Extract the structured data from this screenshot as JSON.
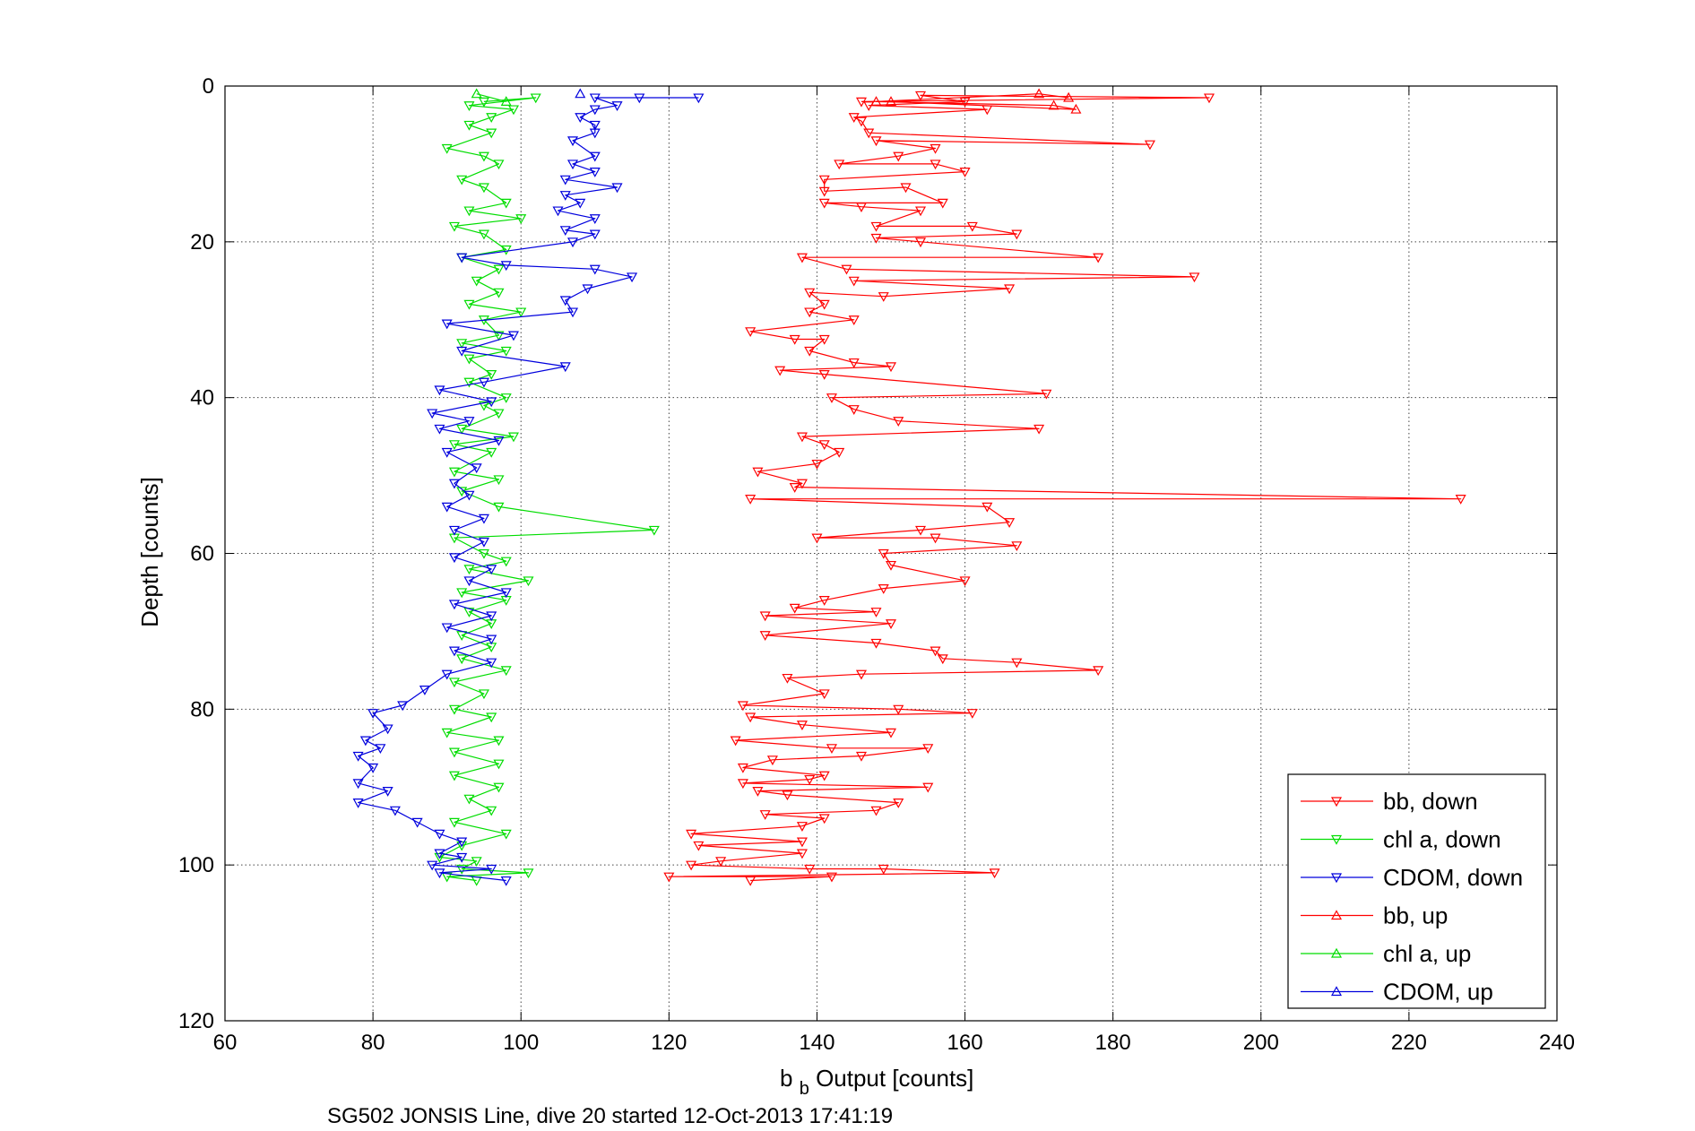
{
  "chart_data": {
    "type": "line",
    "title": "",
    "xlabel": {
      "main": "b",
      "sub": "b",
      "rest": " Output [counts]"
    },
    "ylabel": "Depth [counts]",
    "caption": "SG502 JONSIS Line, dive 20 started 12-Oct-2013 17:41:19",
    "xlim": [
      60,
      240
    ],
    "ylim": [
      0,
      120
    ],
    "y_reversed": true,
    "grid": true,
    "legend_position": "bottom-right",
    "xticks": [
      60,
      80,
      100,
      120,
      140,
      160,
      180,
      200,
      220,
      240
    ],
    "xtick_labels": [
      "60",
      "80",
      "100",
      "120",
      "140",
      "160",
      "180",
      "200",
      "220",
      "240"
    ],
    "yticks": [
      0,
      20,
      40,
      60,
      80,
      100,
      120
    ],
    "ytick_labels": [
      "0",
      "20",
      "40",
      "60",
      "80",
      "100",
      "120"
    ],
    "series": [
      {
        "name": "bb, down",
        "color": "#ff0000",
        "marker": "triangle-down",
        "points": [
          [
            146,
            2
          ],
          [
            193,
            1.5
          ],
          [
            154,
            1.2
          ],
          [
            160,
            2
          ],
          [
            147,
            2.5
          ],
          [
            163,
            3
          ],
          [
            145,
            4
          ],
          [
            146,
            4.5
          ],
          [
            147,
            6
          ],
          [
            185,
            7.5
          ],
          [
            148,
            7
          ],
          [
            156,
            8
          ],
          [
            151,
            9
          ],
          [
            143,
            10
          ],
          [
            156,
            10
          ],
          [
            160,
            11
          ],
          [
            141,
            12
          ],
          [
            141,
            13.5
          ],
          [
            152,
            13
          ],
          [
            157,
            15
          ],
          [
            141,
            15
          ],
          [
            146,
            15.5
          ],
          [
            154,
            16
          ],
          [
            148,
            18
          ],
          [
            161,
            18
          ],
          [
            167,
            19
          ],
          [
            148,
            19.5
          ],
          [
            154,
            20
          ],
          [
            178,
            22
          ],
          [
            138,
            22
          ],
          [
            144,
            23.5
          ],
          [
            191,
            24.5
          ],
          [
            145,
            25
          ],
          [
            166,
            26
          ],
          [
            149,
            27
          ],
          [
            139,
            26.5
          ],
          [
            141,
            28
          ],
          [
            139,
            29
          ],
          [
            145,
            30
          ],
          [
            131,
            31.5
          ],
          [
            137,
            32.5
          ],
          [
            141,
            32.5
          ],
          [
            139,
            34
          ],
          [
            145,
            35.5
          ],
          [
            150,
            36
          ],
          [
            135,
            36.5
          ],
          [
            141,
            37
          ],
          [
            171,
            39.5
          ],
          [
            142,
            40
          ],
          [
            145,
            41.5
          ],
          [
            151,
            43
          ],
          [
            170,
            44
          ],
          [
            138,
            45
          ],
          [
            141,
            46
          ],
          [
            143,
            47
          ],
          [
            140,
            48.5
          ],
          [
            132,
            49.5
          ],
          [
            138,
            51
          ],
          [
            137,
            51.5
          ],
          [
            227,
            53
          ],
          [
            131,
            53
          ],
          [
            163,
            54
          ],
          [
            166,
            56
          ],
          [
            154,
            57
          ],
          [
            140,
            58
          ],
          [
            156,
            58
          ],
          [
            167,
            59
          ],
          [
            149,
            60
          ],
          [
            150,
            61.5
          ],
          [
            160,
            63.5
          ],
          [
            149,
            64.5
          ],
          [
            141,
            66
          ],
          [
            137,
            67
          ],
          [
            148,
            67.5
          ],
          [
            133,
            68
          ],
          [
            150,
            69
          ],
          [
            133,
            70.5
          ],
          [
            148,
            71.5
          ],
          [
            156,
            72.5
          ],
          [
            157,
            73.5
          ],
          [
            167,
            74
          ],
          [
            178,
            75
          ],
          [
            146,
            75.5
          ],
          [
            136,
            76
          ],
          [
            141,
            78
          ],
          [
            130,
            79.5
          ],
          [
            151,
            80
          ],
          [
            161,
            80.5
          ],
          [
            131,
            81
          ],
          [
            138,
            82
          ],
          [
            150,
            83
          ],
          [
            129,
            84
          ],
          [
            142,
            85
          ],
          [
            155,
            85
          ],
          [
            146,
            86
          ],
          [
            134,
            86.5
          ],
          [
            130,
            87.5
          ],
          [
            141,
            88.5
          ],
          [
            139,
            89
          ],
          [
            130,
            89.5
          ],
          [
            155,
            90
          ],
          [
            132,
            90.5
          ],
          [
            136,
            91
          ],
          [
            151,
            92
          ],
          [
            148,
            93
          ],
          [
            133,
            93.5
          ],
          [
            141,
            94
          ],
          [
            138,
            95
          ],
          [
            123,
            96
          ],
          [
            138,
            97
          ],
          [
            124,
            97.5
          ],
          [
            138,
            98.5
          ],
          [
            127,
            99.5
          ],
          [
            123,
            100
          ],
          [
            139,
            100.5
          ],
          [
            149,
            100.5
          ],
          [
            164,
            101
          ],
          [
            120,
            101.5
          ],
          [
            142,
            101.5
          ],
          [
            131,
            102
          ]
        ]
      },
      {
        "name": "chl a, down",
        "color": "#00dd00",
        "marker": "triangle-down",
        "points": [
          [
            95,
            2
          ],
          [
            102,
            1.5
          ],
          [
            93,
            2.5
          ],
          [
            99,
            3
          ],
          [
            96,
            4
          ],
          [
            93,
            5
          ],
          [
            96,
            6
          ],
          [
            90,
            8
          ],
          [
            95,
            9
          ],
          [
            97,
            10
          ],
          [
            92,
            12
          ],
          [
            95,
            13
          ],
          [
            98,
            15
          ],
          [
            93,
            16
          ],
          [
            100,
            17
          ],
          [
            91,
            18
          ],
          [
            95,
            19
          ],
          [
            98,
            21
          ],
          [
            92,
            22
          ],
          [
            97,
            23.5
          ],
          [
            94,
            25
          ],
          [
            97,
            26.5
          ],
          [
            93,
            28
          ],
          [
            100,
            29
          ],
          [
            95,
            30
          ],
          [
            97,
            32
          ],
          [
            92,
            33
          ],
          [
            98,
            34
          ],
          [
            93,
            35
          ],
          [
            96,
            37
          ],
          [
            93,
            38
          ],
          [
            98,
            40
          ],
          [
            95,
            41
          ],
          [
            97,
            42
          ],
          [
            92,
            44
          ],
          [
            99,
            45
          ],
          [
            91,
            46
          ],
          [
            96,
            47
          ],
          [
            91,
            49.5
          ],
          [
            97,
            50.5
          ],
          [
            92,
            52
          ],
          [
            97,
            54
          ],
          [
            118,
            57
          ],
          [
            91,
            58
          ],
          [
            95,
            60
          ],
          [
            98,
            61
          ],
          [
            93,
            62
          ],
          [
            101,
            63.5
          ],
          [
            92,
            65
          ],
          [
            98,
            66
          ],
          [
            93,
            67.5
          ],
          [
            96,
            69
          ],
          [
            92,
            70.5
          ],
          [
            96,
            72
          ],
          [
            92,
            73.5
          ],
          [
            98,
            75
          ],
          [
            91,
            76.5
          ],
          [
            95,
            78
          ],
          [
            91,
            80
          ],
          [
            96,
            81
          ],
          [
            90,
            83
          ],
          [
            97,
            84
          ],
          [
            91,
            85.5
          ],
          [
            97,
            87
          ],
          [
            91,
            88.5
          ],
          [
            97,
            90
          ],
          [
            93,
            91.5
          ],
          [
            96,
            93
          ],
          [
            91,
            94.5
          ],
          [
            98,
            96
          ],
          [
            92,
            97.5
          ],
          [
            89,
            99
          ],
          [
            94,
            99.5
          ],
          [
            92,
            100.5
          ],
          [
            101,
            101
          ],
          [
            90,
            101.5
          ],
          [
            94,
            102
          ]
        ]
      },
      {
        "name": "CDOM, down",
        "color": "#0000dd",
        "marker": "triangle-down",
        "points": [
          [
            124,
            1.5
          ],
          [
            116,
            1.5
          ],
          [
            110,
            1.5
          ],
          [
            113,
            2.5
          ],
          [
            110,
            3
          ],
          [
            108,
            4
          ],
          [
            110,
            5
          ],
          [
            110,
            6
          ],
          [
            107,
            7
          ],
          [
            110,
            9
          ],
          [
            107,
            10
          ],
          [
            110,
            11
          ],
          [
            106,
            12
          ],
          [
            113,
            13
          ],
          [
            106,
            14
          ],
          [
            108,
            15
          ],
          [
            105,
            16
          ],
          [
            110,
            17
          ],
          [
            106,
            18.5
          ],
          [
            110,
            19
          ],
          [
            107,
            20
          ],
          [
            92,
            22
          ],
          [
            98,
            23
          ],
          [
            110,
            23.5
          ],
          [
            115,
            24.5
          ],
          [
            109,
            26
          ],
          [
            106,
            27.5
          ],
          [
            107,
            29
          ],
          [
            90,
            30.5
          ],
          [
            99,
            32
          ],
          [
            92,
            34
          ],
          [
            106,
            36
          ],
          [
            95,
            38
          ],
          [
            89,
            39
          ],
          [
            96,
            40.5
          ],
          [
            88,
            42
          ],
          [
            93,
            43
          ],
          [
            89,
            44
          ],
          [
            97,
            45.5
          ],
          [
            90,
            47
          ],
          [
            94,
            49
          ],
          [
            91,
            51
          ],
          [
            93,
            52.5
          ],
          [
            90,
            54
          ],
          [
            95,
            55.5
          ],
          [
            91,
            57
          ],
          [
            95,
            58.5
          ],
          [
            91,
            60.5
          ],
          [
            96,
            62
          ],
          [
            93,
            63.5
          ],
          [
            98,
            65
          ],
          [
            91,
            66.5
          ],
          [
            96,
            68
          ],
          [
            90,
            69.5
          ],
          [
            96,
            71
          ],
          [
            91,
            72.5
          ],
          [
            96,
            74
          ],
          [
            90,
            75.5
          ],
          [
            87,
            77.5
          ],
          [
            84,
            79.5
          ],
          [
            80,
            80.5
          ],
          [
            82,
            82.5
          ],
          [
            79,
            84
          ],
          [
            81,
            85
          ],
          [
            78,
            86
          ],
          [
            80,
            87.5
          ],
          [
            78,
            89.5
          ],
          [
            82,
            90.5
          ],
          [
            78,
            92
          ],
          [
            83,
            93
          ],
          [
            86,
            94.5
          ],
          [
            89,
            96
          ],
          [
            92,
            97
          ],
          [
            89,
            98.5
          ],
          [
            92,
            99
          ],
          [
            88,
            100
          ],
          [
            96,
            100.5
          ],
          [
            89,
            101
          ],
          [
            98,
            102
          ]
        ]
      },
      {
        "name": "bb, up",
        "color": "#ff0000",
        "marker": "triangle-up",
        "points": [
          [
            174,
            1.5
          ],
          [
            170,
            1
          ],
          [
            148,
            2
          ],
          [
            172,
            2.5
          ],
          [
            175,
            3
          ],
          [
            150,
            2
          ]
        ]
      },
      {
        "name": "chl a, up",
        "color": "#00dd00",
        "marker": "triangle-up",
        "points": [
          [
            94,
            1
          ],
          [
            98,
            2
          ]
        ]
      },
      {
        "name": "CDOM, up",
        "color": "#0000dd",
        "marker": "triangle-up",
        "points": [
          [
            108,
            1
          ]
        ]
      }
    ]
  }
}
